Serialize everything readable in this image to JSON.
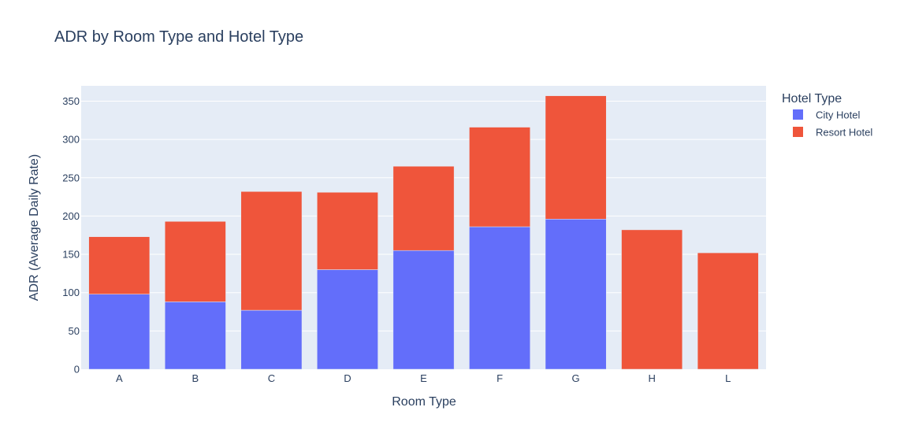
{
  "chart_data": {
    "type": "bar",
    "barmode": "stack",
    "title": "ADR by Room Type and Hotel Type",
    "xlabel": "Room Type",
    "ylabel": "ADR (Average Daily Rate)",
    "ylim": [
      0,
      370
    ],
    "yticks": [
      0,
      50,
      100,
      150,
      200,
      250,
      300,
      350
    ],
    "categories": [
      "A",
      "B",
      "C",
      "D",
      "E",
      "F",
      "G",
      "H",
      "L"
    ],
    "series": [
      {
        "name": "City Hotel",
        "color": "#636efa",
        "values": [
          98,
          88,
          77,
          130,
          155,
          186,
          196,
          0,
          0
        ]
      },
      {
        "name": "Resort Hotel",
        "color": "#ef553b",
        "values": [
          75,
          105,
          155,
          101,
          110,
          130,
          161,
          182,
          152
        ]
      }
    ],
    "legend": {
      "title": "Hotel Type",
      "position": "top-right"
    },
    "grid": true,
    "plot_background": "#e5ecf6"
  }
}
